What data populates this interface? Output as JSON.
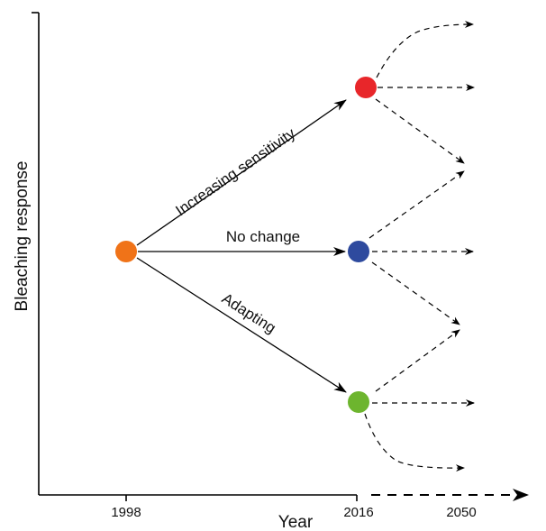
{
  "axes": {
    "y_title": "Bleaching response",
    "x_title": "Year",
    "ticks": [
      "1998",
      "2016",
      "2050"
    ]
  },
  "paths": {
    "increasing": "Increasing sensitivity",
    "no_change": "No change",
    "adapting": "Adapting"
  },
  "nodes": {
    "start": {
      "color": "#f07318"
    },
    "high": {
      "color": "#e8262a"
    },
    "mid": {
      "color": "#2e4a9e"
    },
    "low": {
      "color": "#6db52e"
    }
  }
}
